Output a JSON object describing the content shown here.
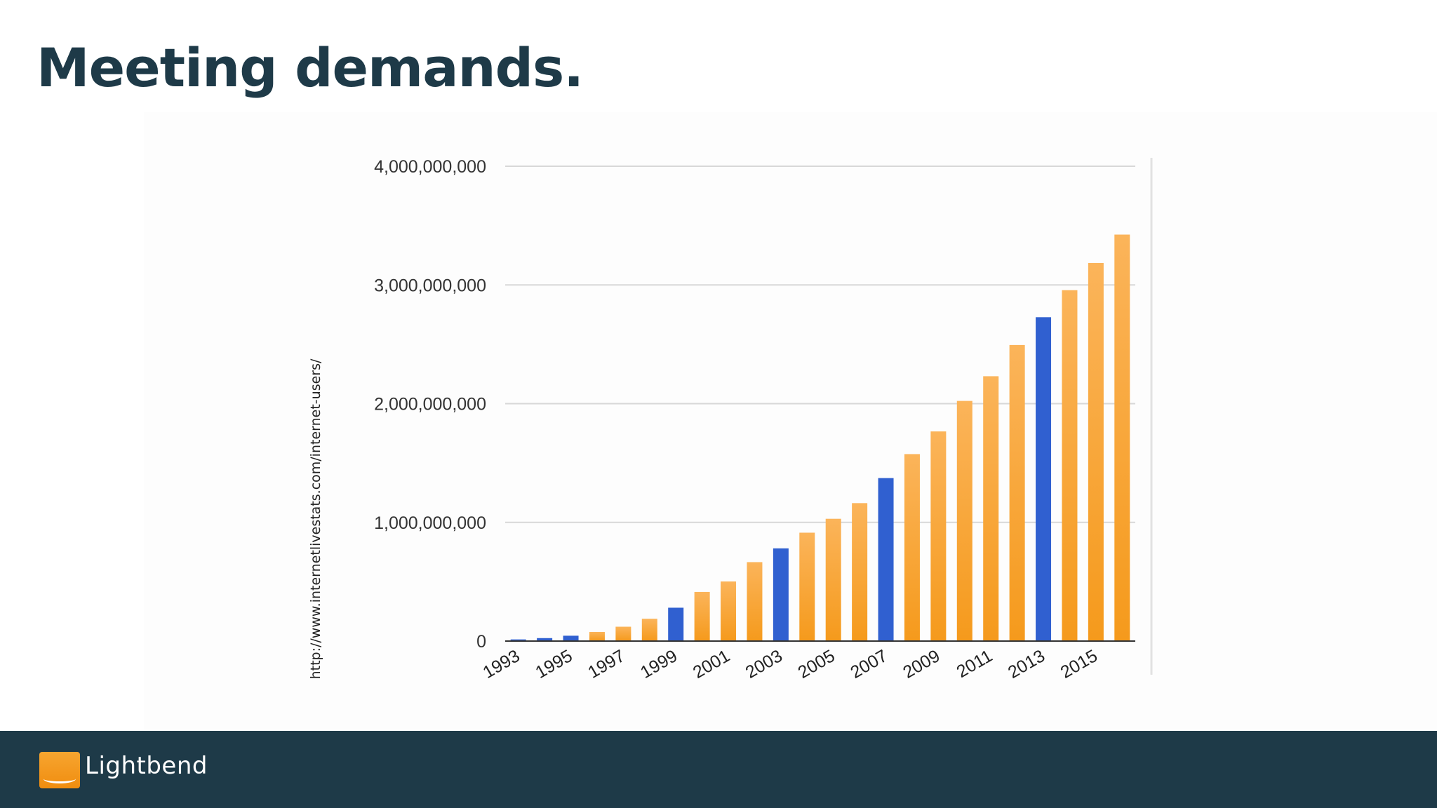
{
  "slide": {
    "title": "Meeting demands.",
    "source_url": "http://www.internetlivestats.com/internet-users/"
  },
  "footer": {
    "brand": "Lightbend",
    "logo_icon": "lightbend-logo-icon"
  },
  "colors": {
    "title": "#1e3a48",
    "footer_bg": "#1e3a48",
    "bar_orange": "#f7a133",
    "bar_blue": "#3060d0",
    "grid": "#d8d8d8"
  },
  "chart_data": {
    "type": "bar",
    "title": "",
    "xlabel": "",
    "ylabel": "",
    "ylim": [
      0,
      4000000000
    ],
    "y_ticks": [
      0,
      1000000000,
      2000000000,
      3000000000,
      4000000000
    ],
    "y_tick_labels": [
      "0",
      "1,000,000,000",
      "2,000,000,000",
      "3,000,000,000",
      "4,000,000,000"
    ],
    "x_tick_labels": [
      "1993",
      "1995",
      "1997",
      "1999",
      "2001",
      "2003",
      "2005",
      "2007",
      "2009",
      "2011",
      "2013",
      "2015"
    ],
    "grid": true,
    "categories": [
      "1993",
      "1994",
      "1995",
      "1996",
      "1997",
      "1998",
      "1999",
      "2000",
      "2001",
      "2002",
      "2003",
      "2004",
      "2005",
      "2006",
      "2007",
      "2008",
      "2009",
      "2010",
      "2011",
      "2012",
      "2013",
      "2014",
      "2015",
      "2016"
    ],
    "values": [
      14000000,
      25000000,
      45000000,
      77000000,
      121000000,
      188000000,
      281000000,
      414000000,
      502000000,
      665000000,
      781000000,
      913000000,
      1030000000,
      1162000000,
      1373000000,
      1575000000,
      1766000000,
      2023000000,
      2231000000,
      2494000000,
      2728000000,
      2956000000,
      3185000000,
      3424000000
    ],
    "highlight": [
      "blue",
      "blue",
      "blue",
      "orange",
      "orange",
      "orange",
      "blue",
      "orange",
      "orange",
      "orange",
      "blue",
      "orange",
      "orange",
      "orange",
      "blue",
      "orange",
      "orange",
      "orange",
      "orange",
      "orange",
      "blue",
      "orange",
      "orange",
      "orange"
    ]
  }
}
